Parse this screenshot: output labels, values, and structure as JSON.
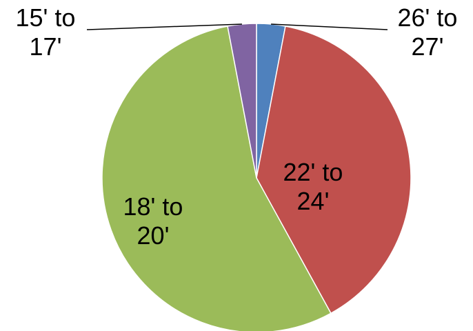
{
  "chart_data": {
    "type": "pie",
    "title": "",
    "slices": [
      {
        "label": "26' to 27'",
        "label_lines": [
          "26' to",
          "27'"
        ],
        "value": 3,
        "color": "#4F81BD"
      },
      {
        "label": "22' to 24'",
        "label_lines": [
          "22' to",
          "24'"
        ],
        "value": 39,
        "color": "#C0504D"
      },
      {
        "label": "18' to 20'",
        "label_lines": [
          "18' to",
          "20'"
        ],
        "value": 55,
        "color": "#9BBB59"
      },
      {
        "label": "15' to 17'",
        "label_lines": [
          "15' to",
          "17'"
        ],
        "value": 3,
        "color": "#8064A2"
      }
    ],
    "start_angle": "12 o'clock",
    "direction": "clockwise",
    "legend": "none",
    "data_labels": "category name"
  }
}
